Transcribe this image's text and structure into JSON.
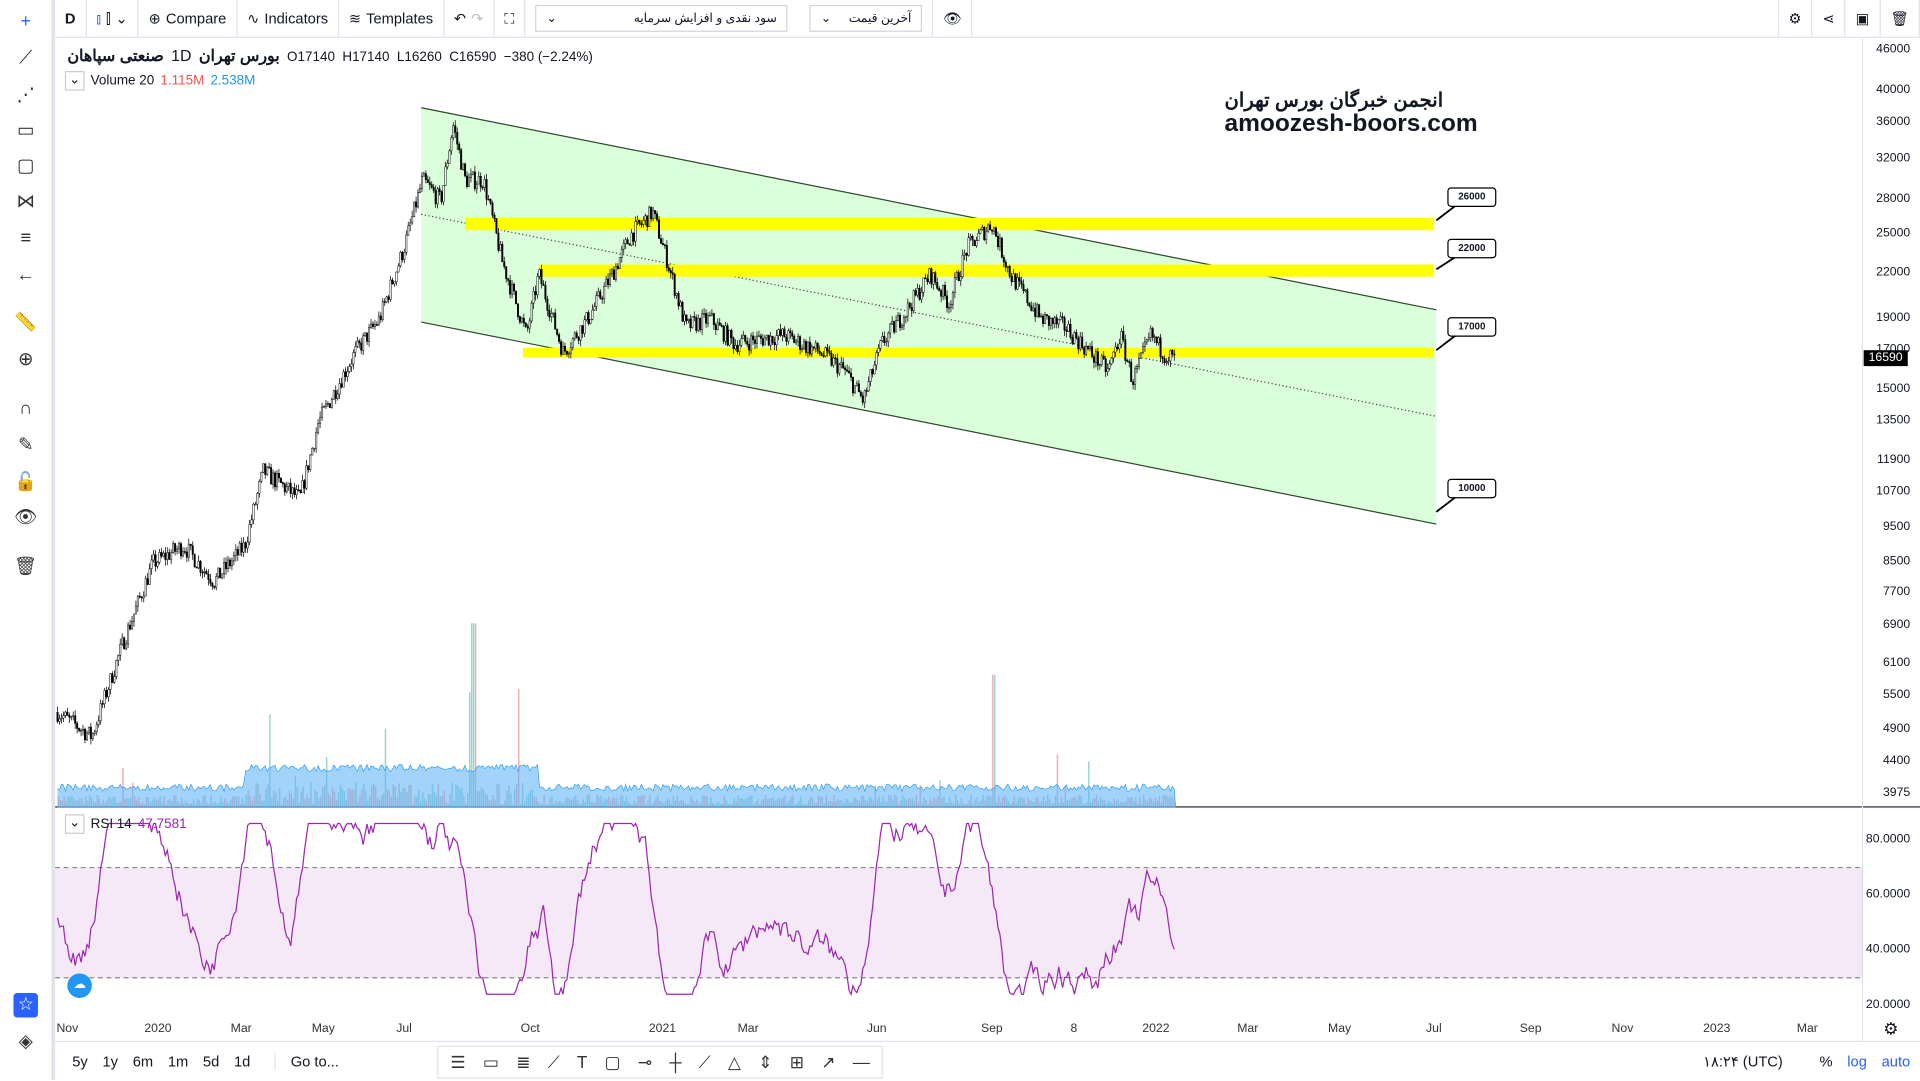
{
  "toolbar": {
    "interval": "D",
    "compare": "Compare",
    "indicators": "Indicators",
    "templates": "Templates",
    "dropdown1": "سود نقدی و افزایش سرمایه",
    "dropdown2": "آخرین قیمت"
  },
  "header": {
    "symbol": "صنعتی سپاهان",
    "timeframe": "1D",
    "exchange": "بورس تهران",
    "open": "O17140",
    "high": "H17140",
    "low": "L16260",
    "close": "C16590",
    "change": "−380 (−2.24%)"
  },
  "volume": {
    "label": "Volume 20",
    "v1": "1.115M",
    "v2": "2.538M"
  },
  "rsi": {
    "label": "RSI 14",
    "value": "47.7581",
    "axis": [
      "80.0000",
      "60.0000",
      "40.0000",
      "20.0000"
    ]
  },
  "watermark": {
    "line1": "انجمن خبرگان بورس تهران",
    "line2": "amoozesh-boors.com"
  },
  "price_axis": [
    "46000",
    "40000",
    "36000",
    "32000",
    "28000",
    "25000",
    "22000",
    "19000",
    "17000",
    "15000",
    "13500",
    "11900",
    "10700",
    "9500",
    "8500",
    "7700",
    "6900",
    "6100",
    "5500",
    "4900",
    "4400",
    "3975"
  ],
  "last_price": "16590",
  "levels": [
    "26000",
    "22000",
    "17000",
    "10000"
  ],
  "time_axis": [
    "Nov",
    "2020",
    "Mar",
    "May",
    "Jul",
    "Oct",
    "2021",
    "Mar",
    "Jun",
    "Sep",
    "8",
    "2022",
    "Mar",
    "May",
    "Jul",
    "Sep",
    "Nov",
    "2023",
    "Mar"
  ],
  "bottom": {
    "ranges": [
      "5y",
      "1y",
      "6m",
      "1m",
      "5d",
      "1d"
    ],
    "goto": "Go to...",
    "time": "۱۸:۲۴ (UTC)",
    "pct": "%",
    "log": "log",
    "auto": "auto"
  },
  "colors": {
    "up": "#26a69a",
    "down": "#000000",
    "channel": "#ccffcc",
    "band": "#ffff00",
    "rsi": "#9c27b0",
    "accent": "#2962ff"
  },
  "chart_data": {
    "type": "candlestick",
    "scale": "log",
    "price_path": [
      [
        47,
        5200
      ],
      [
        75,
        4800
      ],
      [
        100,
        6500
      ],
      [
        125,
        8500
      ],
      [
        150,
        9000
      ],
      [
        175,
        8000
      ],
      [
        200,
        9000
      ],
      [
        215,
        11500
      ],
      [
        245,
        10500
      ],
      [
        260,
        13500
      ],
      [
        290,
        17000
      ],
      [
        310,
        19000
      ],
      [
        330,
        24000
      ],
      [
        345,
        30000
      ],
      [
        360,
        28000
      ],
      [
        370,
        36000
      ],
      [
        380,
        30000
      ],
      [
        395,
        30000
      ],
      [
        410,
        23000
      ],
      [
        430,
        18000
      ],
      [
        440,
        22000
      ],
      [
        460,
        17000
      ],
      [
        480,
        19000
      ],
      [
        500,
        22000
      ],
      [
        515,
        25000
      ],
      [
        533,
        27000
      ],
      [
        545,
        23000
      ],
      [
        560,
        18500
      ],
      [
        580,
        19000
      ],
      [
        600,
        17500
      ],
      [
        640,
        18000
      ],
      [
        670,
        17000
      ],
      [
        690,
        16000
      ],
      [
        705,
        14500
      ],
      [
        720,
        17500
      ],
      [
        740,
        19500
      ],
      [
        760,
        22000
      ],
      [
        775,
        20000
      ],
      [
        790,
        24000
      ],
      [
        810,
        26000
      ],
      [
        825,
        22000
      ],
      [
        850,
        19000
      ],
      [
        870,
        18500
      ],
      [
        890,
        17000
      ],
      [
        905,
        16000
      ],
      [
        915,
        18000
      ],
      [
        925,
        15500
      ],
      [
        940,
        18000
      ],
      [
        950,
        17000
      ],
      [
        960,
        16590
      ]
    ]
  }
}
